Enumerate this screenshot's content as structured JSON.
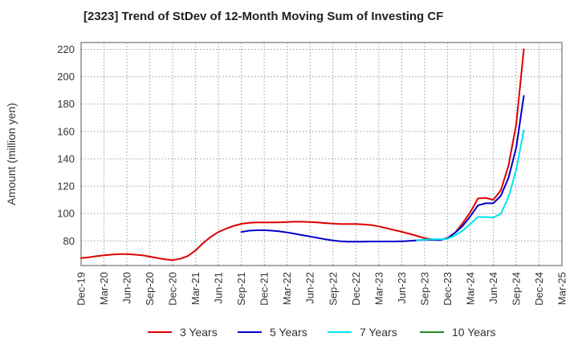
{
  "title": "[2323]  Trend of StDev of 12-Month Moving Sum of Investing CF",
  "chart_data": {
    "type": "line",
    "title": "[2323]  Trend of StDev of 12-Month Moving Sum of Investing CF",
    "ylabel": "Amount (million yen)",
    "xlabel": "",
    "x_ticks": [
      "Dec-19",
      "Mar-20",
      "Jun-20",
      "Sep-20",
      "Dec-20",
      "Mar-21",
      "Jun-21",
      "Sep-21",
      "Dec-21",
      "Mar-22",
      "Jun-22",
      "Sep-22",
      "Dec-22",
      "Mar-23",
      "Jun-23",
      "Sep-23",
      "Dec-23",
      "Mar-24",
      "Jun-24",
      "Sep-24",
      "Dec-24",
      "Mar-25"
    ],
    "x_range": [
      "2019-12",
      "2025-03"
    ],
    "y_ticks": [
      80,
      100,
      120,
      140,
      160,
      180,
      200,
      220
    ],
    "ylim": [
      62,
      225
    ],
    "grid": true,
    "legend_position": "bottom",
    "series": [
      {
        "name": "3 Years",
        "color": "#dd0000",
        "points": [
          [
            "2019-12",
            67.5
          ],
          [
            "2020-01",
            68
          ],
          [
            "2020-02",
            68.8
          ],
          [
            "2020-03",
            69.5
          ],
          [
            "2020-04",
            70
          ],
          [
            "2020-05",
            70.3
          ],
          [
            "2020-06",
            70.3
          ],
          [
            "2020-07",
            70
          ],
          [
            "2020-08",
            69.5
          ],
          [
            "2020-09",
            68.5
          ],
          [
            "2020-10",
            67.5
          ],
          [
            "2020-11",
            66.5
          ],
          [
            "2020-12",
            66
          ],
          [
            "2021-01",
            67
          ],
          [
            "2021-02",
            69
          ],
          [
            "2021-03",
            73
          ],
          [
            "2021-04",
            78.5
          ],
          [
            "2021-05",
            83
          ],
          [
            "2021-06",
            86.5
          ],
          [
            "2021-07",
            89
          ],
          [
            "2021-08",
            91
          ],
          [
            "2021-09",
            92.5
          ],
          [
            "2021-10",
            93.2
          ],
          [
            "2021-11",
            93.5
          ],
          [
            "2021-12",
            93.5
          ],
          [
            "2022-01",
            93.5
          ],
          [
            "2022-02",
            93.6
          ],
          [
            "2022-03",
            93.8
          ],
          [
            "2022-04",
            94
          ],
          [
            "2022-05",
            94
          ],
          [
            "2022-06",
            93.8
          ],
          [
            "2022-07",
            93.5
          ],
          [
            "2022-08",
            93
          ],
          [
            "2022-09",
            92.6
          ],
          [
            "2022-10",
            92.4
          ],
          [
            "2022-11",
            92.4
          ],
          [
            "2022-12",
            92.4
          ],
          [
            "2023-01",
            92.1
          ],
          [
            "2023-02",
            91.6
          ],
          [
            "2023-03",
            90.6
          ],
          [
            "2023-04",
            89.3
          ],
          [
            "2023-05",
            88
          ],
          [
            "2023-06",
            86.7
          ],
          [
            "2023-07",
            85.2
          ],
          [
            "2023-08",
            83.7
          ],
          [
            "2023-09",
            82
          ],
          [
            "2023-10",
            81.2
          ],
          [
            "2023-11",
            80.8
          ],
          [
            "2023-12",
            82
          ],
          [
            "2024-01",
            86
          ],
          [
            "2024-02",
            93
          ],
          [
            "2024-03",
            101
          ],
          [
            "2024-04",
            111
          ],
          [
            "2024-05",
            111.5
          ],
          [
            "2024-06",
            110
          ],
          [
            "2024-07",
            117
          ],
          [
            "2024-08",
            135
          ],
          [
            "2024-09",
            165
          ],
          [
            "2024-10",
            220
          ]
        ]
      },
      {
        "name": "5 Years",
        "color": "#0000cc",
        "points": [
          [
            "2021-09",
            86.5
          ],
          [
            "2021-10",
            87.5
          ],
          [
            "2021-11",
            87.8
          ],
          [
            "2021-12",
            87.8
          ],
          [
            "2022-01",
            87.5
          ],
          [
            "2022-02",
            87
          ],
          [
            "2022-03",
            86.2
          ],
          [
            "2022-04",
            85.2
          ],
          [
            "2022-05",
            84.2
          ],
          [
            "2022-06",
            83.2
          ],
          [
            "2022-07",
            82.2
          ],
          [
            "2022-08",
            81.2
          ],
          [
            "2022-09",
            80.3
          ],
          [
            "2022-10",
            79.7
          ],
          [
            "2022-11",
            79.4
          ],
          [
            "2022-12",
            79.4
          ],
          [
            "2023-01",
            79.5
          ],
          [
            "2023-02",
            79.6
          ],
          [
            "2023-03",
            79.6
          ],
          [
            "2023-04",
            79.6
          ],
          [
            "2023-05",
            79.6
          ],
          [
            "2023-06",
            79.7
          ],
          [
            "2023-07",
            80
          ],
          [
            "2023-08",
            80.4
          ],
          [
            "2023-09",
            80.8
          ],
          [
            "2023-10",
            80.8
          ],
          [
            "2023-11",
            80.6
          ],
          [
            "2023-12",
            82
          ],
          [
            "2024-01",
            86
          ],
          [
            "2024-02",
            91
          ],
          [
            "2024-03",
            98
          ],
          [
            "2024-04",
            106
          ],
          [
            "2024-05",
            107.5
          ],
          [
            "2024-06",
            107.5
          ],
          [
            "2024-07",
            113
          ],
          [
            "2024-08",
            126
          ],
          [
            "2024-09",
            148
          ],
          [
            "2024-10",
            186
          ]
        ]
      },
      {
        "name": "7 Years",
        "color": "#00e5ee",
        "points": [
          [
            "2023-08",
            80.5
          ],
          [
            "2023-09",
            81
          ],
          [
            "2023-10",
            81.3
          ],
          [
            "2023-11",
            81.2
          ],
          [
            "2023-12",
            81.5
          ],
          [
            "2024-01",
            84
          ],
          [
            "2024-02",
            87.5
          ],
          [
            "2024-03",
            92.5
          ],
          [
            "2024-04",
            97.5
          ],
          [
            "2024-05",
            97.5
          ],
          [
            "2024-06",
            97
          ],
          [
            "2024-07",
            100
          ],
          [
            "2024-08",
            112
          ],
          [
            "2024-09",
            132
          ],
          [
            "2024-10",
            161
          ]
        ]
      },
      {
        "name": "10 Years",
        "color": "#228b22",
        "points": []
      }
    ]
  }
}
